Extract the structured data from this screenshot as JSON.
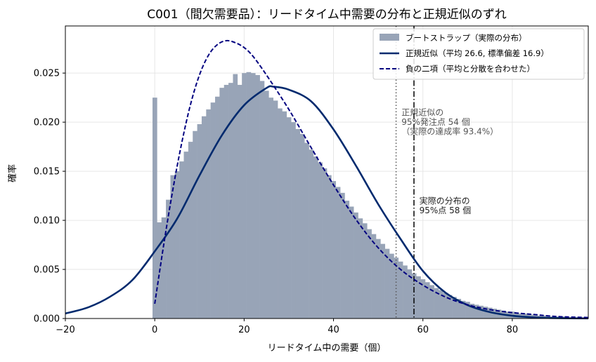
{
  "chart_data": {
    "type": "bar+line",
    "title": "C001（間欠需要品）：リードタイム中需要の分布と正規近似のずれ",
    "xlabel": "リードタイム中の需要（個）",
    "ylabel": "確率",
    "xlim": [
      -20,
      97
    ],
    "ylim": [
      0,
      0.0298
    ],
    "xticks": [
      -20,
      0,
      20,
      40,
      60,
      80
    ],
    "yticks": [
      0.0,
      0.005,
      0.01,
      0.015,
      0.02,
      0.025
    ],
    "xtick_labels": [
      "−20",
      "0",
      "20",
      "40",
      "60",
      "80"
    ],
    "ytick_labels": [
      "0.000",
      "0.005",
      "0.010",
      "0.015",
      "0.020",
      "0.025"
    ],
    "grid": true,
    "legend_position": "top-right",
    "colors": {
      "hist": "#98a4b7",
      "normal": "#002a6e",
      "negbin": "#000080"
    },
    "histogram": {
      "name": "ブートストラップ（実際の分布）",
      "bin_width": 1,
      "bins": [
        {
          "x": 0,
          "y": 0.0225
        },
        {
          "x": 1,
          "y": 0.0098
        },
        {
          "x": 2,
          "y": 0.0103
        },
        {
          "x": 3,
          "y": 0.0121
        },
        {
          "x": 4,
          "y": 0.0146
        },
        {
          "x": 5,
          "y": 0.015
        },
        {
          "x": 6,
          "y": 0.016
        },
        {
          "x": 7,
          "y": 0.017
        },
        {
          "x": 8,
          "y": 0.018
        },
        {
          "x": 9,
          "y": 0.0191
        },
        {
          "x": 10,
          "y": 0.0198
        },
        {
          "x": 11,
          "y": 0.0206
        },
        {
          "x": 12,
          "y": 0.0213
        },
        {
          "x": 13,
          "y": 0.022
        },
        {
          "x": 14,
          "y": 0.0226
        },
        {
          "x": 15,
          "y": 0.0235
        },
        {
          "x": 16,
          "y": 0.0238
        },
        {
          "x": 17,
          "y": 0.024
        },
        {
          "x": 18,
          "y": 0.0249
        },
        {
          "x": 19,
          "y": 0.0238
        },
        {
          "x": 20,
          "y": 0.025
        },
        {
          "x": 21,
          "y": 0.0251
        },
        {
          "x": 22,
          "y": 0.025
        },
        {
          "x": 23,
          "y": 0.0248
        },
        {
          "x": 24,
          "y": 0.0242
        },
        {
          "x": 25,
          "y": 0.0232
        },
        {
          "x": 26,
          "y": 0.0225
        },
        {
          "x": 27,
          "y": 0.0222
        },
        {
          "x": 28,
          "y": 0.0214
        },
        {
          "x": 29,
          "y": 0.0211
        },
        {
          "x": 30,
          "y": 0.0205
        },
        {
          "x": 31,
          "y": 0.02
        },
        {
          "x": 32,
          "y": 0.0193
        },
        {
          "x": 33,
          "y": 0.0188
        },
        {
          "x": 34,
          "y": 0.0179
        },
        {
          "x": 35,
          "y": 0.0172
        },
        {
          "x": 36,
          "y": 0.0165
        },
        {
          "x": 37,
          "y": 0.0159
        },
        {
          "x": 38,
          "y": 0.0153
        },
        {
          "x": 39,
          "y": 0.0146
        },
        {
          "x": 40,
          "y": 0.014
        },
        {
          "x": 41,
          "y": 0.0134
        },
        {
          "x": 42,
          "y": 0.0128
        },
        {
          "x": 43,
          "y": 0.012
        },
        {
          "x": 44,
          "y": 0.0114
        },
        {
          "x": 45,
          "y": 0.0108
        },
        {
          "x": 46,
          "y": 0.0102
        },
        {
          "x": 47,
          "y": 0.0097
        },
        {
          "x": 48,
          "y": 0.0091
        },
        {
          "x": 49,
          "y": 0.0086
        },
        {
          "x": 50,
          "y": 0.0081
        },
        {
          "x": 51,
          "y": 0.0076
        },
        {
          "x": 52,
          "y": 0.0071
        },
        {
          "x": 53,
          "y": 0.0066
        },
        {
          "x": 54,
          "y": 0.0062
        },
        {
          "x": 55,
          "y": 0.0058
        },
        {
          "x": 56,
          "y": 0.0054
        },
        {
          "x": 57,
          "y": 0.005
        },
        {
          "x": 58,
          "y": 0.0046
        },
        {
          "x": 59,
          "y": 0.0043
        },
        {
          "x": 60,
          "y": 0.004
        },
        {
          "x": 61,
          "y": 0.0037
        },
        {
          "x": 62,
          "y": 0.0034
        },
        {
          "x": 63,
          "y": 0.0031
        },
        {
          "x": 64,
          "y": 0.0029
        },
        {
          "x": 65,
          "y": 0.0026
        },
        {
          "x": 66,
          "y": 0.0024
        },
        {
          "x": 67,
          "y": 0.0022
        },
        {
          "x": 68,
          "y": 0.002
        },
        {
          "x": 69,
          "y": 0.0018
        },
        {
          "x": 70,
          "y": 0.0017
        },
        {
          "x": 71,
          "y": 0.0015
        },
        {
          "x": 72,
          "y": 0.0014
        },
        {
          "x": 73,
          "y": 0.0013
        },
        {
          "x": 74,
          "y": 0.0012
        },
        {
          "x": 75,
          "y": 0.0011
        },
        {
          "x": 76,
          "y": 0.001
        },
        {
          "x": 77,
          "y": 0.0009
        },
        {
          "x": 78,
          "y": 0.0008
        },
        {
          "x": 79,
          "y": 0.0007
        },
        {
          "x": 80,
          "y": 0.0007
        },
        {
          "x": 81,
          "y": 0.0006
        },
        {
          "x": 82,
          "y": 0.0005
        },
        {
          "x": 83,
          "y": 0.0005
        },
        {
          "x": 84,
          "y": 0.0004
        },
        {
          "x": 85,
          "y": 0.0004
        },
        {
          "x": 86,
          "y": 0.0003
        },
        {
          "x": 87,
          "y": 0.0003
        },
        {
          "x": 88,
          "y": 0.0003
        },
        {
          "x": 89,
          "y": 0.0002
        },
        {
          "x": 90,
          "y": 0.0002
        },
        {
          "x": 91,
          "y": 0.0002
        },
        {
          "x": 92,
          "y": 0.0002
        },
        {
          "x": 93,
          "y": 0.0001
        },
        {
          "x": 94,
          "y": 0.0001
        },
        {
          "x": 95,
          "y": 0.0001
        },
        {
          "x": 96,
          "y": 0.0001
        }
      ]
    },
    "series": [
      {
        "name": "正規近似（平均 26.6, 標準偏差 16.9）",
        "type": "line",
        "style": "solid",
        "x": [
          -20,
          -15,
          -10,
          -5,
          0,
          5,
          10,
          15,
          20,
          25,
          26.6,
          30,
          35,
          40,
          45,
          50,
          55,
          60,
          65,
          70,
          75,
          80,
          85,
          90,
          97
        ],
        "y": [
          0.00051,
          0.00112,
          0.00222,
          0.00392,
          0.00684,
          0.01016,
          0.01456,
          0.01865,
          0.02173,
          0.02348,
          0.02361,
          0.02331,
          0.02212,
          0.01926,
          0.01558,
          0.01164,
          0.0081,
          0.00484,
          0.00265,
          0.00136,
          0.00065,
          0.00028,
          0.00011,
          4e-05,
          1e-05
        ]
      },
      {
        "name": "負の二項（平均と分散を合わせた）",
        "type": "line",
        "style": "dashed",
        "x": [
          0,
          2,
          4,
          6,
          8,
          10,
          12,
          14,
          16,
          18,
          20,
          22,
          25,
          30,
          35,
          40,
          45,
          50,
          55,
          60,
          65,
          70,
          75,
          80,
          85,
          90,
          97
        ],
        "y": [
          0.0015,
          0.0075,
          0.013,
          0.0178,
          0.0218,
          0.0248,
          0.0268,
          0.0279,
          0.0283,
          0.0281,
          0.0276,
          0.0267,
          0.0248,
          0.0213,
          0.0174,
          0.0136,
          0.0101,
          0.0072,
          0.005,
          0.0034,
          0.0022,
          0.0014,
          0.0009,
          0.0006,
          0.0004,
          0.0002,
          0.0001
        ]
      }
    ],
    "reference_lines": [
      {
        "x": 54,
        "style": "dotted",
        "color": "#555555"
      },
      {
        "x": 58,
        "style": "dashdot",
        "color": "#000000"
      }
    ],
    "annotations": [
      {
        "x": 55.2,
        "y": 0.0207,
        "color": "#555555",
        "lines": [
          "正規近似の",
          "95%発注点 54 個",
          "（実際の達成率 93.4%）"
        ]
      },
      {
        "x": 59.2,
        "y": 0.0117,
        "color": "#222222",
        "lines": [
          "実際の分布の",
          "95%点 58 個"
        ]
      }
    ]
  }
}
